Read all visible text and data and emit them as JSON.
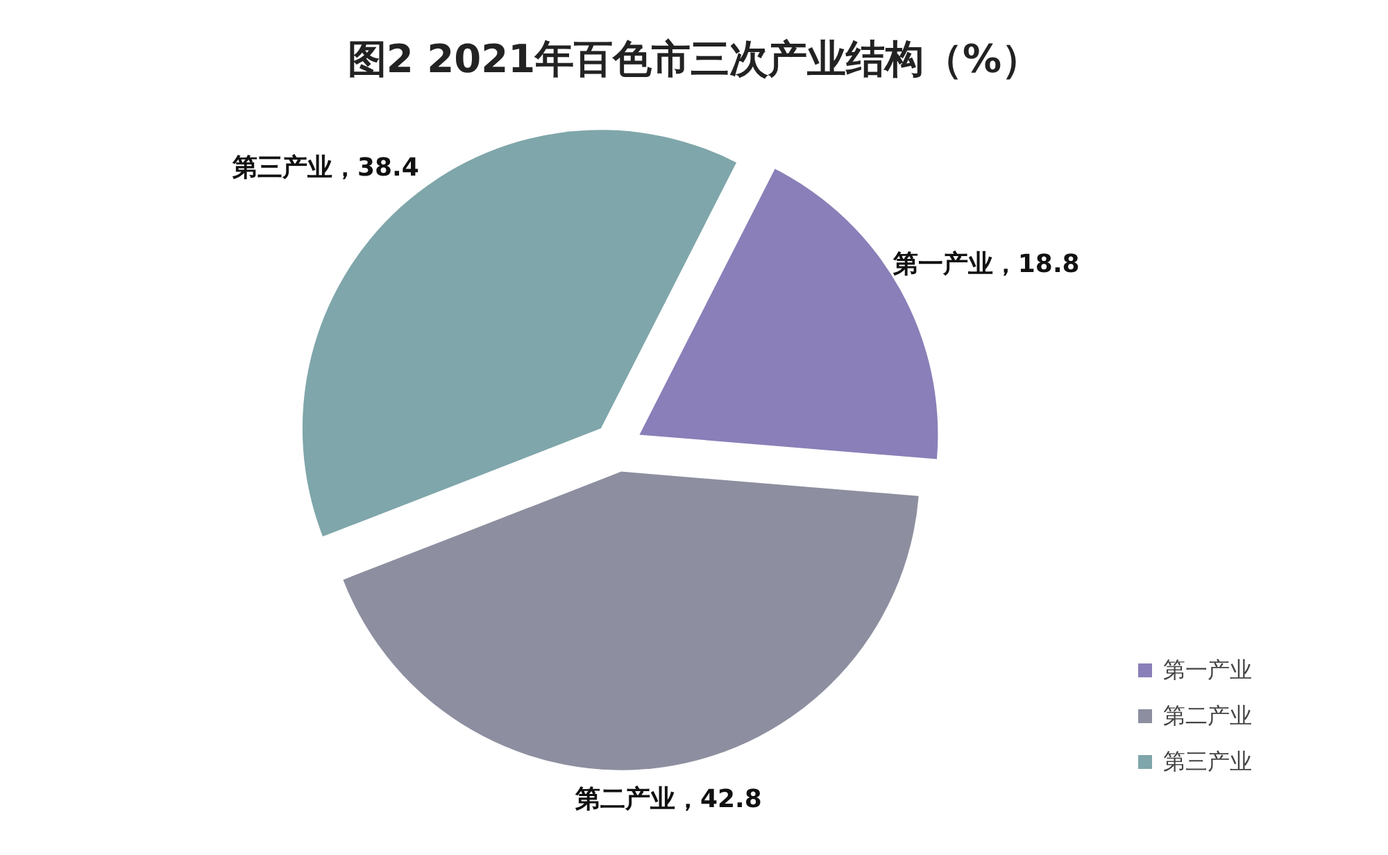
{
  "chart_data": {
    "type": "pie",
    "title": "图2 2021年百色市三次产业结构（%）",
    "categories": [
      "第一产业",
      "第二产业",
      "第三产业"
    ],
    "values": [
      18.8,
      42.8,
      38.4
    ],
    "colors": [
      "#8a7fb8",
      "#8d8fa0",
      "#7fa6aa"
    ],
    "value_labels": [
      "第一产业，18.8",
      "第二产业，42.8",
      "第三产业，38.4"
    ],
    "legend": "bottom right"
  }
}
